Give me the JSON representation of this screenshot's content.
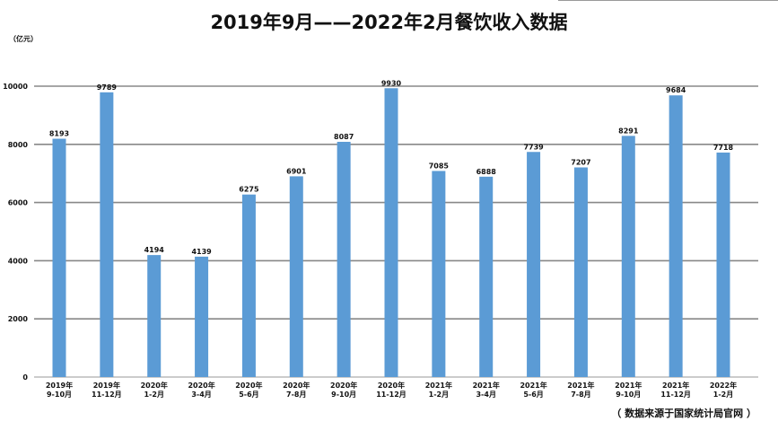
{
  "header": {
    "title": "2019年9月——2022年2月餐饮收入数据",
    "unit": "（亿元）",
    "source": "（ 数据来源于国家统计局官网 ）"
  },
  "chart_data": {
    "type": "bar",
    "title": "2019年9月——2022年2月餐饮收入数据",
    "ylabel": "（亿元）",
    "ylim": [
      0,
      10000
    ],
    "yticks": [
      0,
      2000,
      4000,
      6000,
      8000,
      10000
    ],
    "grid": true,
    "bar_color": "#5b9bd5",
    "categories": [
      [
        "2019年",
        "9-10月"
      ],
      [
        "2019年",
        "11-12月"
      ],
      [
        "2020年",
        "1-2月"
      ],
      [
        "2020年",
        "3-4月"
      ],
      [
        "2020年",
        "5-6月"
      ],
      [
        "2020年",
        "7-8月"
      ],
      [
        "2020年",
        "9-10月"
      ],
      [
        "2020年",
        "11-12月"
      ],
      [
        "2021年",
        "1-2月"
      ],
      [
        "2021年",
        "3-4月"
      ],
      [
        "2021年",
        "5-6月"
      ],
      [
        "2021年",
        "7-8月"
      ],
      [
        "2021年",
        "9-10月"
      ],
      [
        "2021年",
        "11-12月"
      ],
      [
        "2022年",
        "1-2月"
      ]
    ],
    "values": [
      8193,
      9789,
      4194,
      4139,
      6275,
      6901,
      8087,
      9930,
      7085,
      6888,
      7739,
      7207,
      8291,
      9684,
      7718
    ]
  }
}
